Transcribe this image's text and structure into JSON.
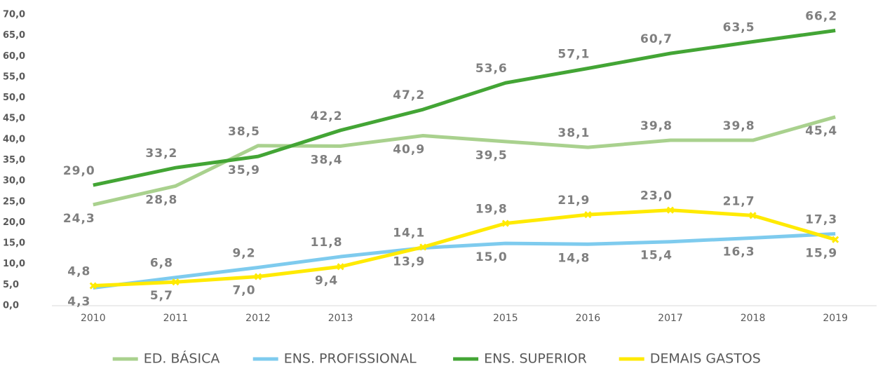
{
  "chart_data": {
    "type": "line",
    "categories": [
      "2010",
      "2011",
      "2012",
      "2013",
      "2014",
      "2015",
      "2016",
      "2017",
      "2018",
      "2019"
    ],
    "ylim": [
      0,
      70
    ],
    "yticks": [
      {
        "value": 0,
        "label": "0,0"
      },
      {
        "value": 5,
        "label": "5,0"
      },
      {
        "value": 10,
        "label": "10,0"
      },
      {
        "value": 15,
        "label": "15,0"
      },
      {
        "value": 20,
        "label": "20,0"
      },
      {
        "value": 25,
        "label": "25,0"
      },
      {
        "value": 30,
        "label": "30,0"
      },
      {
        "value": 35,
        "label": "35,0"
      },
      {
        "value": 40,
        "label": "40,0"
      },
      {
        "value": 45,
        "label": "45,0"
      },
      {
        "value": 50,
        "label": "50,0"
      },
      {
        "value": 55,
        "label": "55,0"
      },
      {
        "value": 60,
        "label": "60,0"
      },
      {
        "value": 65,
        "label": "65,0"
      },
      {
        "value": 70,
        "label": "70,0"
      }
    ],
    "grid": false,
    "legend": "bottom",
    "series": [
      {
        "name": "ED. BÁSICA",
        "color": "#a9d18e",
        "values": [
          24.3,
          28.8,
          38.5,
          38.4,
          40.9,
          39.5,
          38.1,
          39.8,
          39.8,
          45.4
        ],
        "value_labels": [
          "24,3",
          "28,8",
          "38,5",
          "38,4",
          "40,9",
          "39,5",
          "38,1",
          "39,8",
          "39,8",
          "45,4"
        ]
      },
      {
        "name": "ENS. PROFISSIONAL",
        "color": "#7ecbee",
        "values": [
          4.3,
          6.8,
          9.2,
          11.8,
          13.9,
          15.0,
          14.8,
          15.4,
          16.3,
          17.3
        ],
        "value_labels": [
          "4,3",
          "6,8",
          "9,2",
          "11,8",
          "13,9",
          "15,0",
          "14,8",
          "15,4",
          "16,3",
          "17,3"
        ]
      },
      {
        "name": "ENS. SUPERIOR",
        "color": "#43a535",
        "values": [
          29.0,
          33.2,
          35.9,
          42.2,
          47.2,
          53.6,
          57.1,
          60.7,
          63.5,
          66.2
        ],
        "value_labels": [
          "29,0",
          "33,2",
          "35,9",
          "42,2",
          "47,2",
          "53,6",
          "57,1",
          "60,7",
          "63,5",
          "66,2"
        ]
      },
      {
        "name": "DEMAIS GASTOS",
        "color": "#ffea00",
        "marker": "x",
        "values": [
          4.8,
          5.7,
          7.0,
          9.4,
          14.1,
          19.8,
          21.9,
          23.0,
          21.7,
          15.9
        ],
        "value_labels": [
          "4,8",
          "5,7",
          "7,0",
          "9,4",
          "14,1",
          "19,8",
          "21,9",
          "23,0",
          "21,7",
          "15,9"
        ]
      }
    ]
  }
}
